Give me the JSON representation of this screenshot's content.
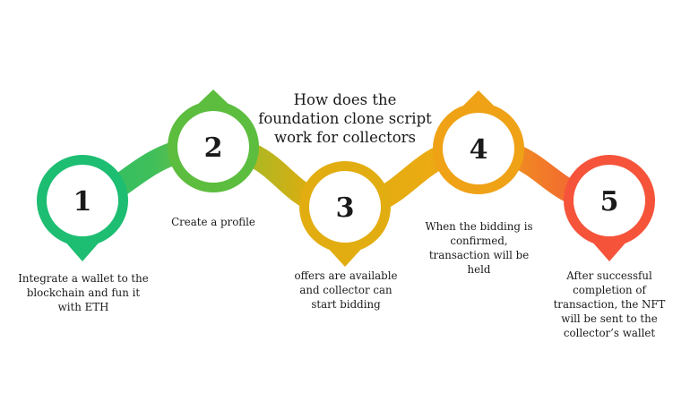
{
  "title": "How does the foundation clone script work for collectors",
  "steps": [
    {
      "number": "1",
      "caption": "Integrate a wallet to the blockchain and fun it with ETH",
      "color": "#1dbd72"
    },
    {
      "number": "2",
      "caption": "Create a profile",
      "color": "#6cbd3a"
    },
    {
      "number": "3",
      "caption": "offers are available and collector can start bidding",
      "color": "#e2ad10"
    },
    {
      "number": "4",
      "caption": "When the bidding is confirmed, transaction will be held",
      "color": "#efa216"
    },
    {
      "number": "5",
      "caption": "After successful completion of transaction, the NFT will be sent to the collector’s wallet",
      "color": "#f5543a"
    }
  ]
}
